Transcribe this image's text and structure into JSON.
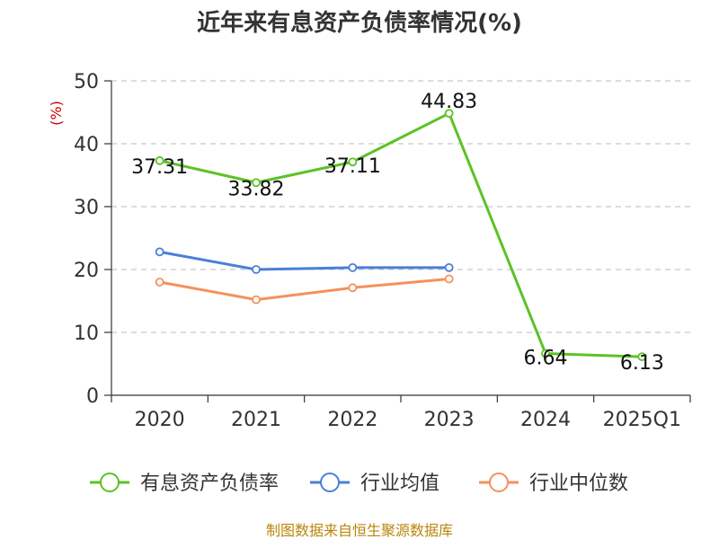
{
  "chart_data": {
    "type": "line",
    "title": "近年来有息资产负债率情况(%)",
    "ylabel": "(%)",
    "categories": [
      "2020",
      "2021",
      "2022",
      "2023",
      "2024",
      "2025Q1"
    ],
    "ylim": [
      0,
      50
    ],
    "yticks": [
      0,
      10,
      20,
      30,
      40,
      50
    ],
    "grid": true,
    "legend_position": "bottom",
    "series": [
      {
        "name": "有息资产负债率",
        "color": "#5cc226",
        "values": [
          37.31,
          33.82,
          37.11,
          44.83,
          6.64,
          6.13
        ],
        "labels": [
          "37.31",
          "33.82",
          "37.11",
          "44.83",
          "6.64",
          "6.13"
        ]
      },
      {
        "name": "行业均值",
        "color": "#4a7fd9",
        "values": [
          22.8,
          20.0,
          20.3,
          20.3,
          null,
          null
        ]
      },
      {
        "name": "行业中位数",
        "color": "#f5915a",
        "values": [
          18.0,
          15.2,
          17.1,
          18.5,
          null,
          null
        ]
      }
    ]
  },
  "source": "制图数据来自恒生聚源数据库"
}
